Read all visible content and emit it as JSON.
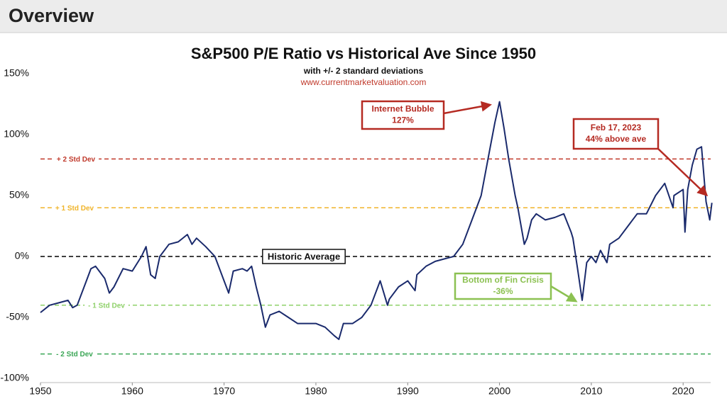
{
  "header": {
    "title": "Overview"
  },
  "chart_data": {
    "type": "line",
    "title": "S&P500 P/E Ratio vs Historical Ave Since 1950",
    "subtitle": "with +/- 2 standard deviations",
    "source": "www.currentmarketvaluation.com",
    "color": "#1a2a6c",
    "x": [
      1950,
      1951,
      1952,
      1953,
      1953.5,
      1954,
      1955,
      1955.5,
      1956,
      1957,
      1957.5,
      1958,
      1959,
      1960,
      1961,
      1961.5,
      1962,
      1962.5,
      1963,
      1964,
      1965,
      1966,
      1966.5,
      1967,
      1968,
      1969,
      1970,
      1970.5,
      1971,
      1972,
      1972.5,
      1973,
      1973.5,
      1974,
      1974.5,
      1975,
      1976,
      1977,
      1978,
      1979,
      1980,
      1981,
      1982,
      1982.5,
      1983,
      1984,
      1985,
      1986,
      1987,
      1987.8,
      1988,
      1989,
      1990,
      1990.8,
      1991,
      1992,
      1993,
      1994,
      1995,
      1996,
      1997,
      1998,
      1999,
      1999.5,
      2000,
      2000.5,
      2001,
      2001.7,
      2002,
      2002.7,
      2003,
      2003.5,
      2004,
      2005,
      2006,
      2007,
      2007.8,
      2008,
      2008.5,
      2009,
      2009.5,
      2010,
      2010.5,
      2011,
      2011.7,
      2012,
      2013,
      2014,
      2015,
      2016,
      2017,
      2018,
      2018.9,
      2019,
      2020,
      2020.2,
      2020.5,
      2021,
      2021.5,
      2022,
      2022.5,
      2022.9,
      2023.13
    ],
    "values": [
      -46,
      -40,
      -38,
      -36,
      -42,
      -40,
      -20,
      -10,
      -8,
      -18,
      -30,
      -25,
      -10,
      -12,
      0,
      8,
      -15,
      -18,
      0,
      10,
      12,
      18,
      10,
      15,
      8,
      0,
      -20,
      -30,
      -12,
      -10,
      -12,
      -8,
      -25,
      -40,
      -58,
      -48,
      -45,
      -50,
      -55,
      -55,
      -55,
      -58,
      -65,
      -68,
      -55,
      -55,
      -50,
      -40,
      -20,
      -40,
      -35,
      -25,
      -20,
      -28,
      -15,
      -8,
      -4,
      -2,
      0,
      10,
      30,
      50,
      90,
      110,
      127,
      105,
      80,
      50,
      40,
      10,
      15,
      30,
      35,
      30,
      32,
      35,
      20,
      15,
      -10,
      -36,
      -5,
      0,
      -5,
      5,
      -5,
      10,
      15,
      25,
      35,
      35,
      50,
      60,
      40,
      50,
      55,
      20,
      55,
      75,
      88,
      90,
      45,
      30,
      44
    ],
    "xlim": [
      1950,
      2023
    ],
    "ylim": [
      -100,
      150
    ],
    "xticks": [
      1950,
      1960,
      1970,
      1980,
      1990,
      2000,
      2010,
      2020
    ],
    "yticks": [
      {
        "value": 150,
        "label": "150%"
      },
      {
        "value": 100,
        "label": "100%"
      },
      {
        "value": 50,
        "label": "50%"
      },
      {
        "value": 0,
        "label": "0%"
      },
      {
        "value": -50,
        "label": "-50%"
      },
      {
        "value": -100,
        "label": "-100%"
      }
    ],
    "reference_lines": [
      {
        "value": 80,
        "label": "+ 2 Std Dev",
        "color": "#c0392b"
      },
      {
        "value": 40,
        "label": "+ 1 Std Dev",
        "color": "#f0b429"
      },
      {
        "value": 0,
        "label": "Historic Average",
        "color": "#000000"
      },
      {
        "value": -40,
        "label": "- 1 Std Dev",
        "color": "#8fd16a"
      },
      {
        "value": -80,
        "label": "- 2 Std Dev",
        "color": "#3aa655"
      }
    ],
    "annotations": [
      {
        "lines": [
          "Internet Bubble",
          "127%"
        ],
        "color": "#b52a22"
      },
      {
        "lines": [
          "Feb 17, 2023",
          "44% above ave"
        ],
        "color": "#b52a22"
      },
      {
        "lines": [
          "Bottom of Fin Crisis",
          "-36%"
        ],
        "color": "#8cc152"
      }
    ]
  }
}
